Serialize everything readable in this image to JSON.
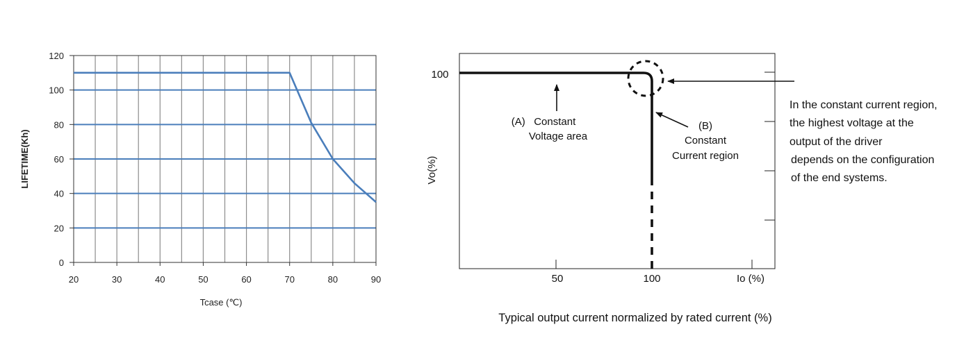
{
  "chart_data": [
    {
      "type": "line",
      "ylabel": "LIFETIME(Kh)",
      "xlabel": "Tcase (℃)",
      "xlim": [
        20,
        90
      ],
      "ylim": [
        0,
        120
      ],
      "x_ticks": [
        "20",
        "30",
        "40",
        "50",
        "60",
        "70",
        "80",
        "90"
      ],
      "y_ticks": [
        "0",
        "20",
        "40",
        "60",
        "80",
        "100",
        "120"
      ],
      "grid": true,
      "line_color": "#4a7ebb",
      "series": [
        {
          "x": [
            20,
            70,
            75,
            80,
            85,
            90
          ],
          "y": [
            110,
            110,
            81,
            60,
            46,
            35
          ]
        }
      ]
    },
    {
      "type": "line",
      "ylabel": "Vo(%)",
      "xlabel": "Io (%)",
      "caption": "Typical output current normalized by rated current (%)",
      "x_ticks": [
        "50",
        "100"
      ],
      "y_ticks": [
        "100"
      ],
      "annotations": {
        "a_line1": "(A)   Constant",
        "a_line2": "Voltage area",
        "b_line1": "(B)",
        "b_line2": "Constant",
        "b_line3": "Current region",
        "note": [
          "In the constant current region,",
          "the highest voltage at the",
          "output of the driver",
          "depends on the configuration",
          "of the end systems."
        ]
      },
      "series": [
        {
          "x": [
            0,
            95,
            100,
            100
          ],
          "y": [
            100,
            100,
            95,
            50
          ],
          "style": "solid"
        },
        {
          "x": [
            100,
            100
          ],
          "y": [
            50,
            0
          ],
          "style": "dashed"
        }
      ]
    }
  ]
}
